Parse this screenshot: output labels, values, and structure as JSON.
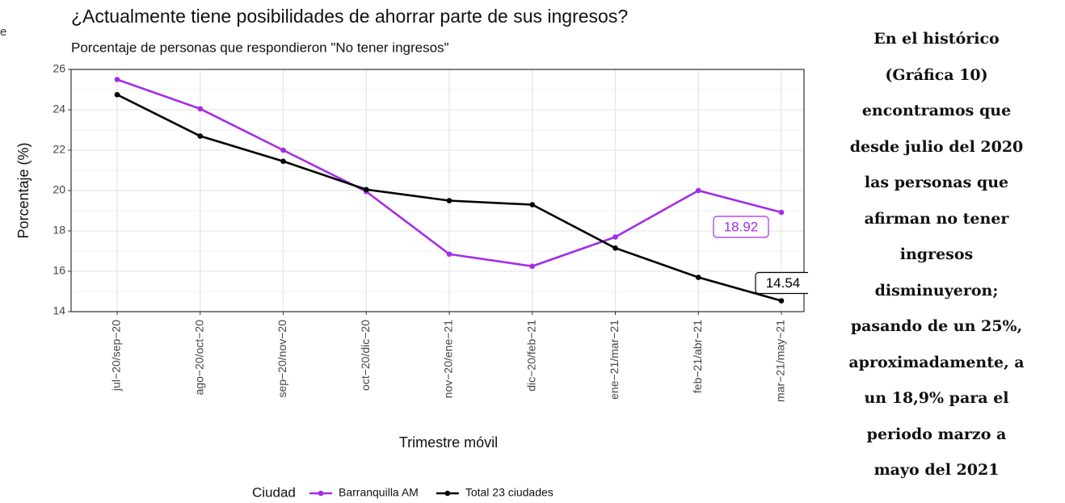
{
  "fragment": "e",
  "chart_data": {
    "type": "line",
    "title": "¿Actualmente tiene posibilidades de ahorrar parte de sus ingresos?",
    "subtitle": "Porcentaje de personas que respondieron \"No tener ingresos\"",
    "x_label": "Trimestre móvil",
    "y_label": "Porcentaje (%)",
    "legend_title": "Ciudad",
    "categories": [
      "jul−20/sep−20",
      "ago−20/oct−20",
      "sep−20/nov−20",
      "oct−20/dic−20",
      "nov−20/ene−21",
      "dic−20/feb−21",
      "ene−21/mar−21",
      "feb−21/abr−21",
      "mar−21/may−21"
    ],
    "series": [
      {
        "name": "Barranquilla AM",
        "color": "#a22ee8",
        "values": [
          25.5,
          24.05,
          22.0,
          19.95,
          16.85,
          16.25,
          17.7,
          20.0,
          18.92
        ]
      },
      {
        "name": "Total 23 ciudades",
        "color": "#000000",
        "values": [
          24.75,
          22.7,
          21.45,
          20.05,
          19.5,
          19.3,
          17.15,
          15.7,
          14.54
        ]
      }
    ],
    "ylim": [
      14,
      26
    ],
    "yticks": [
      14,
      16,
      18,
      20,
      22,
      24,
      26
    ],
    "grid": true,
    "legend": "bottom"
  },
  "side_text": [
    "En el histórico",
    "(Gráfica 10)",
    "encontramos que",
    "desde julio del 2020",
    "las personas que",
    "afirman no tener",
    "ingresos",
    "disminuyeron;",
    "pasando de un 25%,",
    "aproximadamente, a",
    "un 18,9% para el",
    "periodo marzo a",
    "mayo del 2021"
  ]
}
